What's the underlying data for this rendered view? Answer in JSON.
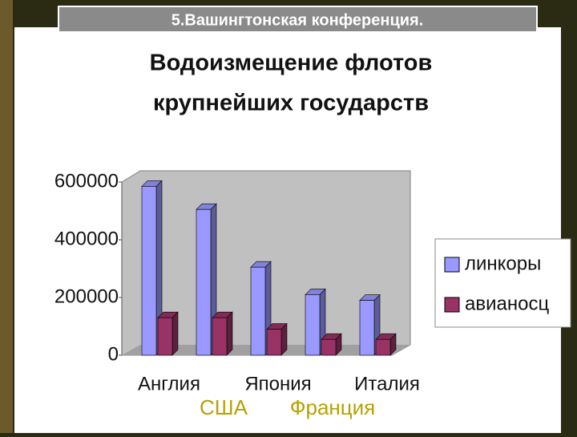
{
  "header": {
    "title": "5.Вашингтонская конференция."
  },
  "chart_data": {
    "type": "bar3d",
    "title": [
      "Водоизмещение флотов",
      "крупнейших государств"
    ],
    "categories": [
      "Англия",
      "США",
      "Япония",
      "Франция",
      "Италия"
    ],
    "series": [
      {
        "name": "линкоры",
        "color": "#9999ff",
        "values": [
          585000,
          505000,
          305000,
          210000,
          190000
        ]
      },
      {
        "name": "авианосц",
        "color": "#993366",
        "values": [
          130000,
          130000,
          90000,
          55000,
          55000
        ]
      }
    ],
    "ylim": [
      0,
      600000
    ],
    "yticks": [
      0,
      200000,
      400000,
      600000
    ],
    "legend": "right"
  }
}
